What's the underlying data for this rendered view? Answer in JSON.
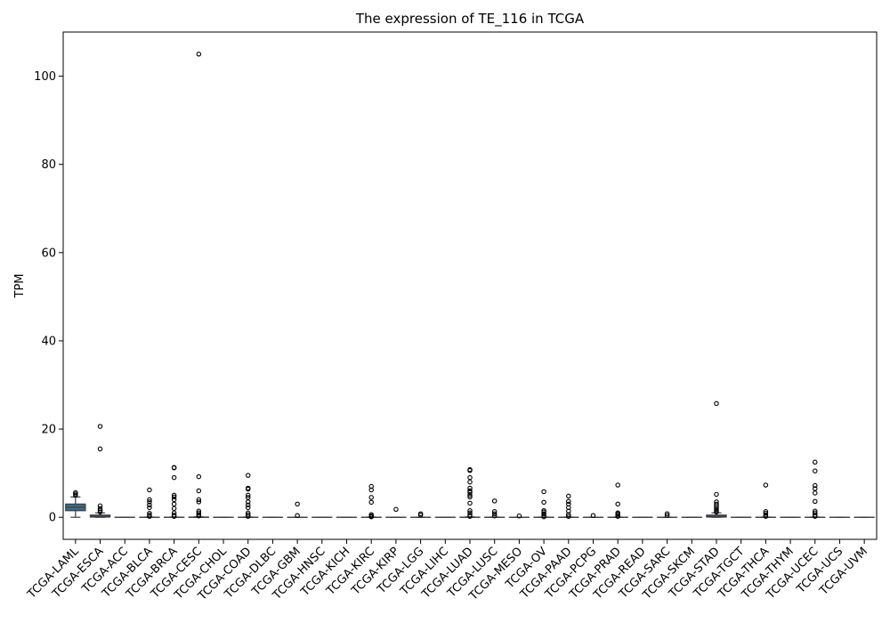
{
  "chart_data": {
    "type": "box",
    "title": "The expression of TE_116 in TCGA",
    "xlabel": "",
    "ylabel": "TPM",
    "ylim": [
      -5,
      110
    ],
    "yticks": [
      0,
      20,
      40,
      60,
      80,
      100
    ],
    "grid": false,
    "box_color": "#3a6b8c",
    "categories": [
      "TCGA-LAML",
      "TCGA-ESCA",
      "TCGA-ACC",
      "TCGA-BLCA",
      "TCGA-BRCA",
      "TCGA-CESC",
      "TCGA-CHOL",
      "TCGA-COAD",
      "TCGA-DLBC",
      "TCGA-GBM",
      "TCGA-HNSC",
      "TCGA-KICH",
      "TCGA-KIRC",
      "TCGA-KIRP",
      "TCGA-LGG",
      "TCGA-LIHC",
      "TCGA-LUAD",
      "TCGA-LUSC",
      "TCGA-MESO",
      "TCGA-OV",
      "TCGA-PAAD",
      "TCGA-PCPG",
      "TCGA-PRAD",
      "TCGA-READ",
      "TCGA-SARC",
      "TCGA-SKCM",
      "TCGA-STAD",
      "TCGA-TGCT",
      "TCGA-THCA",
      "TCGA-THYM",
      "TCGA-UCEC",
      "TCGA-UCS",
      "TCGA-UVM"
    ],
    "boxes": [
      {
        "whislo": 0.0,
        "q1": 1.5,
        "med": 2.3,
        "q3": 3.0,
        "whishi": 4.6,
        "fliers": [
          5.0,
          5.3,
          5.6
        ]
      },
      {
        "whislo": 0.0,
        "q1": 0.05,
        "med": 0.2,
        "q3": 0.5,
        "whishi": 1.0,
        "fliers": [
          1.2,
          1.6,
          2.0,
          2.6,
          15.5,
          20.6
        ]
      },
      {
        "whislo": 0.0,
        "q1": 0.0,
        "med": 0.0,
        "q3": 0.0,
        "whishi": 0.0,
        "fliers": []
      },
      {
        "whislo": 0.0,
        "q1": 0.0,
        "med": 0.0,
        "q3": 0.02,
        "whishi": 0.05,
        "fliers": [
          0.2,
          0.5,
          0.9,
          2.2,
          2.8,
          3.5,
          4.0,
          6.2
        ]
      },
      {
        "whislo": 0.0,
        "q1": 0.0,
        "med": 0.0,
        "q3": 0.02,
        "whishi": 0.05,
        "fliers": [
          0.2,
          0.5,
          1.0,
          2.0,
          3.0,
          4.0,
          4.6,
          5.0,
          9.0,
          11.2,
          11.3
        ]
      },
      {
        "whislo": 0.0,
        "q1": 0.0,
        "med": 0.0,
        "q3": 0.05,
        "whishi": 0.1,
        "fliers": [
          0.3,
          0.6,
          1.0,
          1.4,
          3.5,
          4.0,
          6.0,
          9.2,
          105.0
        ]
      },
      {
        "whislo": 0.0,
        "q1": 0.0,
        "med": 0.0,
        "q3": 0.0,
        "whishi": 0.0,
        "fliers": []
      },
      {
        "whislo": 0.0,
        "q1": 0.0,
        "med": 0.0,
        "q3": 0.02,
        "whishi": 0.05,
        "fliers": [
          0.2,
          0.6,
          1.0,
          2.2,
          2.8,
          3.5,
          4.5,
          5.0,
          6.4,
          6.6,
          9.5
        ]
      },
      {
        "whislo": 0.0,
        "q1": 0.0,
        "med": 0.0,
        "q3": 0.0,
        "whishi": 0.0,
        "fliers": []
      },
      {
        "whislo": 0.0,
        "q1": 0.0,
        "med": 0.0,
        "q3": 0.0,
        "whishi": 0.0,
        "fliers": [
          0.4,
          3.0
        ]
      },
      {
        "whislo": 0.0,
        "q1": 0.0,
        "med": 0.0,
        "q3": 0.0,
        "whishi": 0.0,
        "fliers": []
      },
      {
        "whislo": 0.0,
        "q1": 0.0,
        "med": 0.0,
        "q3": 0.0,
        "whishi": 0.0,
        "fliers": []
      },
      {
        "whislo": 0.0,
        "q1": 0.0,
        "med": 0.0,
        "q3": 0.02,
        "whishi": 0.05,
        "fliers": [
          0.1,
          0.3,
          0.6,
          3.4,
          4.5,
          6.2,
          7.0
        ]
      },
      {
        "whislo": 0.0,
        "q1": 0.0,
        "med": 0.0,
        "q3": 0.0,
        "whishi": 0.0,
        "fliers": [
          1.8
        ]
      },
      {
        "whislo": 0.0,
        "q1": 0.0,
        "med": 0.0,
        "q3": 0.0,
        "whishi": 0.0,
        "fliers": [
          0.5,
          0.8
        ]
      },
      {
        "whislo": 0.0,
        "q1": 0.0,
        "med": 0.0,
        "q3": 0.0,
        "whishi": 0.0,
        "fliers": []
      },
      {
        "whislo": 0.0,
        "q1": 0.0,
        "med": 0.0,
        "q3": 0.03,
        "whishi": 0.08,
        "fliers": [
          0.2,
          0.5,
          1.0,
          1.5,
          3.2,
          4.6,
          5.0,
          5.6,
          6.0,
          6.6,
          8.0,
          9.0,
          10.6,
          10.8
        ]
      },
      {
        "whislo": 0.0,
        "q1": 0.0,
        "med": 0.0,
        "q3": 0.02,
        "whishi": 0.05,
        "fliers": [
          0.3,
          0.8,
          1.3,
          3.7
        ]
      },
      {
        "whislo": 0.0,
        "q1": 0.0,
        "med": 0.0,
        "q3": 0.0,
        "whishi": 0.0,
        "fliers": [
          0.3
        ]
      },
      {
        "whislo": 0.0,
        "q1": 0.0,
        "med": 0.0,
        "q3": 0.02,
        "whishi": 0.05,
        "fliers": [
          0.1,
          0.4,
          0.8,
          1.2,
          1.5,
          3.4,
          5.8
        ]
      },
      {
        "whislo": 0.0,
        "q1": 0.0,
        "med": 0.0,
        "q3": 0.02,
        "whishi": 0.05,
        "fliers": [
          0.2,
          0.6,
          1.4,
          2.2,
          3.0,
          3.6,
          4.8
        ]
      },
      {
        "whislo": 0.0,
        "q1": 0.0,
        "med": 0.0,
        "q3": 0.0,
        "whishi": 0.0,
        "fliers": [
          0.4
        ]
      },
      {
        "whislo": 0.0,
        "q1": 0.0,
        "med": 0.0,
        "q3": 0.02,
        "whishi": 0.05,
        "fliers": [
          0.2,
          0.5,
          0.8,
          1.0,
          3.0,
          7.3
        ]
      },
      {
        "whislo": 0.0,
        "q1": 0.0,
        "med": 0.0,
        "q3": 0.0,
        "whishi": 0.0,
        "fliers": []
      },
      {
        "whislo": 0.0,
        "q1": 0.0,
        "med": 0.0,
        "q3": 0.0,
        "whishi": 0.0,
        "fliers": [
          0.4,
          0.8
        ]
      },
      {
        "whislo": 0.0,
        "q1": 0.0,
        "med": 0.0,
        "q3": 0.0,
        "whishi": 0.0,
        "fliers": []
      },
      {
        "whislo": 0.0,
        "q1": 0.05,
        "med": 0.2,
        "q3": 0.5,
        "whishi": 1.0,
        "fliers": [
          1.2,
          1.5,
          1.8,
          2.2,
          2.6,
          3.0,
          3.5,
          5.2,
          25.8
        ]
      },
      {
        "whislo": 0.0,
        "q1": 0.0,
        "med": 0.0,
        "q3": 0.0,
        "whishi": 0.0,
        "fliers": []
      },
      {
        "whislo": 0.0,
        "q1": 0.0,
        "med": 0.0,
        "q3": 0.02,
        "whishi": 0.05,
        "fliers": [
          0.2,
          0.5,
          0.9,
          1.3,
          7.3
        ]
      },
      {
        "whislo": 0.0,
        "q1": 0.0,
        "med": 0.0,
        "q3": 0.0,
        "whishi": 0.0,
        "fliers": []
      },
      {
        "whislo": 0.0,
        "q1": 0.0,
        "med": 0.0,
        "q3": 0.02,
        "whishi": 0.05,
        "fliers": [
          0.2,
          0.5,
          1.0,
          1.4,
          3.6,
          5.5,
          6.5,
          7.2,
          10.5,
          12.5
        ]
      },
      {
        "whislo": 0.0,
        "q1": 0.0,
        "med": 0.0,
        "q3": 0.0,
        "whishi": 0.0,
        "fliers": []
      },
      {
        "whislo": 0.0,
        "q1": 0.0,
        "med": 0.0,
        "q3": 0.0,
        "whishi": 0.0,
        "fliers": []
      }
    ]
  }
}
